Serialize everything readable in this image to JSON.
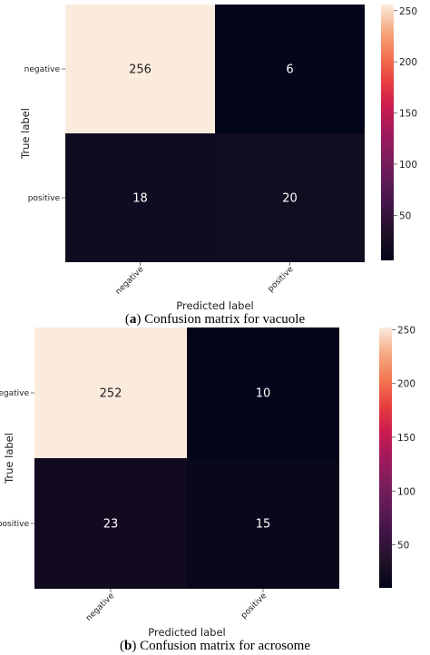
{
  "chart_data": [
    {
      "type": "heatmap",
      "caption_letter": "a",
      "caption_text": "Confusion matrix for vacuole",
      "xlabel": "Predicted label",
      "ylabel": "True label",
      "x_categories": [
        "negative",
        "positive"
      ],
      "y_categories": [
        "negative",
        "positive"
      ],
      "values": [
        [
          256,
          6
        ],
        [
          18,
          20
        ]
      ],
      "colorbar_ticks": [
        50,
        100,
        150,
        200,
        250
      ],
      "colorbar_range": [
        6,
        256
      ],
      "colormap": "rocket"
    },
    {
      "type": "heatmap",
      "caption_letter": "b",
      "caption_text": "Confusion matrix for acrosome",
      "xlabel": "Predicted label",
      "ylabel": "True label",
      "x_categories": [
        "negative",
        "positive"
      ],
      "y_categories": [
        "negative",
        "positive"
      ],
      "values": [
        [
          252,
          10
        ],
        [
          23,
          15
        ]
      ],
      "colorbar_ticks": [
        50,
        100,
        150,
        200,
        250
      ],
      "colorbar_range": [
        10,
        252
      ],
      "colormap": "rocket"
    }
  ]
}
